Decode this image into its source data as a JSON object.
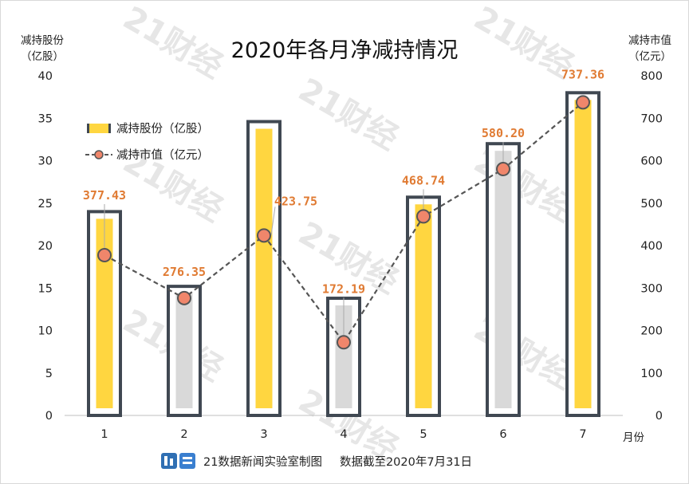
{
  "watermark": "21财经",
  "chart_data": {
    "type": "bar+line",
    "title": "2020年各月净减持情况",
    "left_axis_label": [
      "减持股份",
      "（亿股）"
    ],
    "right_axis_label": [
      "减持市值",
      "（亿元）"
    ],
    "x_axis_label": "月份",
    "categories": [
      "1",
      "2",
      "3",
      "4",
      "5",
      "6",
      "7"
    ],
    "left_ylim": [
      0,
      40
    ],
    "left_ticks": [
      "0",
      "5",
      "10",
      "15",
      "20",
      "25",
      "30",
      "35",
      "40"
    ],
    "right_ylim": [
      0,
      800
    ],
    "right_ticks": [
      "0",
      "100",
      "200",
      "300",
      "400",
      "500",
      "600",
      "700",
      "800"
    ],
    "grid": false,
    "legend_position": "upper-left",
    "series": [
      {
        "name": "减持股份（亿股）",
        "type": "bar",
        "axis": "left",
        "values": [
          24,
          15.2,
          34.6,
          13.8,
          25.7,
          32,
          38
        ],
        "bar_colors": [
          "#FFD640",
          "#D9D9D9",
          "#FFD640",
          "#D9D9D9",
          "#FFD640",
          "#D9D9D9",
          "#FFD640"
        ]
      },
      {
        "name": "减持市值（亿元）",
        "type": "line",
        "axis": "right",
        "values": [
          377.43,
          276.35,
          423.75,
          172.19,
          468.74,
          580.2,
          737.36
        ],
        "labels": [
          "377.43",
          "276.35",
          "423.75",
          "172.19",
          "468.74",
          "580.20",
          "737.36"
        ]
      }
    ],
    "colors": {
      "bar_frame": "#404852",
      "bar_positive": "#FFD640",
      "bar_negative": "#D9D9D9",
      "line": "#555555",
      "marker_fill": "#F0866B",
      "marker_edge": "#555555",
      "label_text": "#E07B33"
    }
  },
  "footer": {
    "logo_icon": "app-logo-icon",
    "source": "21数据新闻实验室制图",
    "note": "数据截至2020年7月31日"
  }
}
